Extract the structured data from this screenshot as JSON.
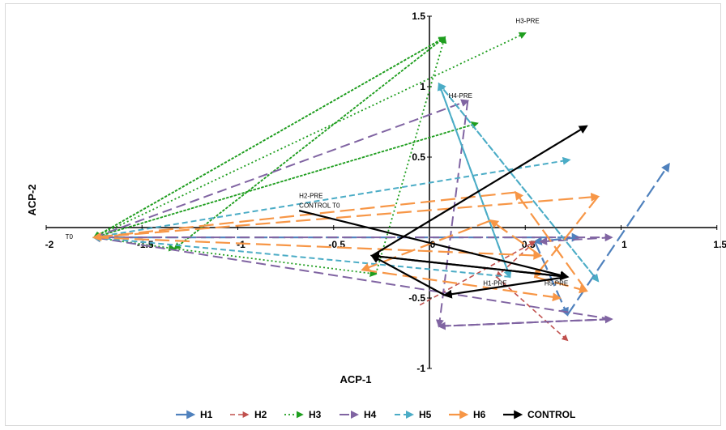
{
  "chart_data": {
    "type": "line",
    "xlabel": "ACP-1",
    "ylabel": "ACP-2",
    "xlim": [
      -2,
      1.5
    ],
    "ylim": [
      -1,
      1.5
    ],
    "x_ticks": [
      "-2",
      "-1.5",
      "-1",
      "-0.5",
      "0",
      "0.5",
      "1",
      "1.5"
    ],
    "y_ticks": [
      "-1",
      "-0.5",
      "0",
      "0.5",
      "1",
      "1.5"
    ],
    "legend_position": "bottom",
    "series": [
      {
        "name": "H1",
        "color": "#4f81bd",
        "dash": "16,6",
        "width": 2.2,
        "x": [
          -1.75,
          0.78,
          0.55,
          0.72,
          1.25
        ],
        "y": [
          -0.07,
          -0.07,
          -0.1,
          -0.62,
          0.45
        ]
      },
      {
        "name": "H2",
        "color": "#c0504d",
        "dash": "6,4",
        "width": 1.6,
        "x": [
          -0.05,
          0.55,
          0.35,
          0.72
        ],
        "y": [
          -0.55,
          -0.1,
          -0.35,
          -0.8
        ]
      },
      {
        "name": "H3",
        "color": "#1f9e1f",
        "dash": "2,3",
        "width": 1.8,
        "x": [
          -1.75,
          0.08,
          -1.33,
          0.08,
          -1.75,
          0.25,
          -1.75,
          -1.33,
          -0.28,
          0.08,
          -1.75,
          0.5
        ],
        "y": [
          -0.07,
          1.35,
          -0.15,
          1.35,
          -0.07,
          0.74,
          -0.07,
          -0.15,
          -0.33,
          1.35,
          -0.07,
          1.38
        ]
      },
      {
        "name": "H4",
        "color": "#8064a2",
        "dash": "12,6",
        "width": 2,
        "x": [
          -1.75,
          0.2,
          0.05,
          0.95,
          0.05,
          0.95,
          -1.75,
          0.95,
          0.58
        ],
        "y": [
          -0.07,
          0.9,
          -0.7,
          -0.65,
          -0.7,
          -0.65,
          -0.07,
          -0.07,
          -0.1
        ]
      },
      {
        "name": "H5",
        "color": "#4bacc6",
        "dash": "7,4",
        "width": 2,
        "x": [
          0.05,
          0.88,
          0.05,
          0.42,
          0.05,
          0.42,
          -1.75,
          0.73
        ],
        "y": [
          1.02,
          -0.38,
          1.02,
          -0.35,
          1.02,
          -0.35,
          -0.07,
          0.48
        ]
      },
      {
        "name": "H6",
        "color": "#f79646",
        "dash": "18,7",
        "width": 2.2,
        "x": [
          -1.75,
          0.88,
          0.55,
          0.82,
          0.45,
          -1.75,
          0.58,
          0.32,
          -0.35,
          0.68
        ],
        "y": [
          -0.07,
          0.22,
          -0.35,
          -0.45,
          0.25,
          -0.07,
          -0.2,
          0.05,
          -0.3,
          -0.5
        ]
      },
      {
        "name": "CONTROL",
        "color": "#000000",
        "dash": "",
        "width": 2.2,
        "x": [
          -0.68,
          0.72,
          0.08,
          -0.3,
          0.72,
          -0.3,
          0.82
        ],
        "y": [
          0.12,
          -0.35,
          -0.48,
          -0.2,
          -0.35,
          -0.2,
          0.72
        ]
      }
    ],
    "annotations": [
      {
        "text": "H3-PRE",
        "x": 0.45,
        "y": 1.45
      },
      {
        "text": "H4-PRE",
        "x": 0.1,
        "y": 0.92
      },
      {
        "text": "H2-PRE",
        "x": -0.68,
        "y": 0.21
      },
      {
        "text": "CONTROL  T0",
        "x": -0.68,
        "y": 0.14
      },
      {
        "text": "T0",
        "x": -1.9,
        "y": -0.08
      },
      {
        "text": "H1-PRE",
        "x": 0.28,
        "y": -0.41
      },
      {
        "text": "H5-PRE",
        "x": 0.6,
        "y": -0.41
      }
    ]
  }
}
